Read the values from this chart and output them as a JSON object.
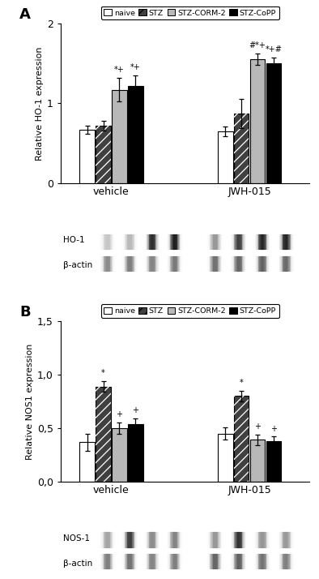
{
  "panel_A": {
    "groups": [
      "vehicle",
      "JWH-015"
    ],
    "categories": [
      "naive",
      "STZ",
      "STZ-CORM-2",
      "STZ-CoPP"
    ],
    "values": [
      [
        0.67,
        0.72,
        1.17,
        1.22
      ],
      [
        0.65,
        0.87,
        1.55,
        1.5
      ]
    ],
    "errors": [
      [
        0.05,
        0.06,
        0.15,
        0.13
      ],
      [
        0.06,
        0.18,
        0.07,
        0.07
      ]
    ],
    "annotations": [
      [
        null,
        null,
        [
          "*+"
        ],
        [
          "*+"
        ]
      ],
      [
        null,
        null,
        [
          "#*+"
        ],
        [
          "*+#"
        ]
      ]
    ],
    "ylabel": "Relative HO-1 expression",
    "ylim": [
      0,
      2.0
    ],
    "yticks": [
      0,
      1,
      2
    ],
    "yticklabels": [
      "0",
      "1",
      "2"
    ],
    "blot_label1": "HO-1",
    "blot_label2": "β-actin",
    "blot_A_veh_row1": [
      0.78,
      0.73,
      0.18,
      0.12
    ],
    "blot_A_veh_row2": [
      0.55,
      0.5,
      0.52,
      0.48
    ],
    "blot_A_jwh_row1": [
      0.6,
      0.25,
      0.15,
      0.15
    ],
    "blot_A_jwh_row2": [
      0.45,
      0.4,
      0.38,
      0.42
    ]
  },
  "panel_B": {
    "groups": [
      "vehicle",
      "JWH-015"
    ],
    "categories": [
      "naive",
      "STZ",
      "STZ-CORM-2",
      "STZ-CoPP"
    ],
    "values": [
      [
        0.37,
        0.89,
        0.5,
        0.54
      ],
      [
        0.45,
        0.8,
        0.39,
        0.38
      ]
    ],
    "errors": [
      [
        0.08,
        0.05,
        0.05,
        0.05
      ],
      [
        0.06,
        0.05,
        0.05,
        0.04
      ]
    ],
    "annotations": [
      [
        null,
        [
          "*"
        ],
        [
          "+"
        ],
        [
          "+"
        ]
      ],
      [
        null,
        [
          "*"
        ],
        [
          "+"
        ],
        [
          "+"
        ]
      ]
    ],
    "ylabel": "Relative NOS1 expression",
    "ylim": [
      0,
      1.5
    ],
    "yticks": [
      0.0,
      0.5,
      1.0,
      1.5
    ],
    "yticklabels": [
      "0,0",
      "0,5",
      "1,0",
      "1,5"
    ],
    "blot_label1": "NOS-1",
    "blot_label2": "β-actin",
    "blot_B_veh_row1": [
      0.65,
      0.25,
      0.55,
      0.52
    ],
    "blot_B_veh_row2": [
      0.5,
      0.45,
      0.52,
      0.5
    ],
    "blot_B_jwh_row1": [
      0.6,
      0.2,
      0.58,
      0.6
    ],
    "blot_B_jwh_row2": [
      0.4,
      0.38,
      0.45,
      0.5
    ]
  },
  "legend_labels": [
    "naive",
    "STZ",
    "STZ-CORM-2",
    "STZ-CoPP"
  ],
  "bar_colors": [
    "white",
    "#404040",
    "#b8b8b8",
    "black"
  ],
  "bar_hatches": [
    null,
    "///",
    null,
    null
  ],
  "bar_hatch_colors": [
    "black",
    "white",
    "black",
    "white"
  ],
  "bar_edgecolor": "black",
  "background_color": "white",
  "fig_width": 3.94,
  "fig_height": 7.14,
  "dpi": 100
}
